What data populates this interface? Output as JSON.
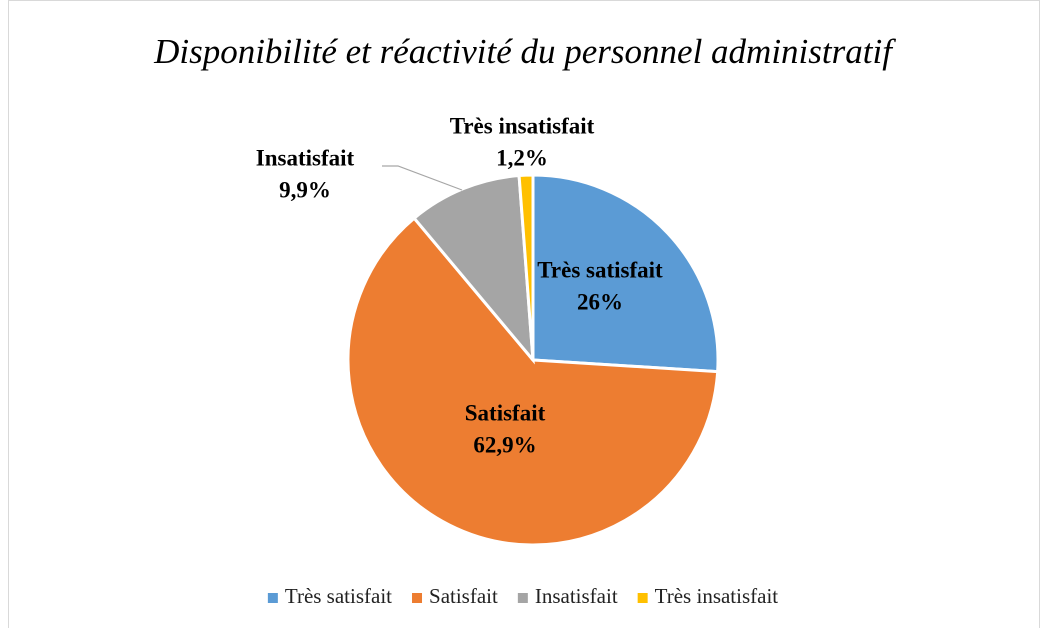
{
  "chart_data": {
    "type": "pie",
    "title": "Disponibilité et réactivité du personnel administratif",
    "categories": [
      "Très satisfait",
      "Satisfait",
      "Insatisfait",
      "Très insatisfait"
    ],
    "values": [
      26,
      62.9,
      9.9,
      1.2
    ],
    "value_labels": [
      "26%",
      "62,9%",
      "9,9%",
      "1,2%"
    ],
    "colors": [
      "#5b9bd5",
      "#ed7d31",
      "#a5a5a5",
      "#ffc000"
    ],
    "legend": "bottom"
  }
}
